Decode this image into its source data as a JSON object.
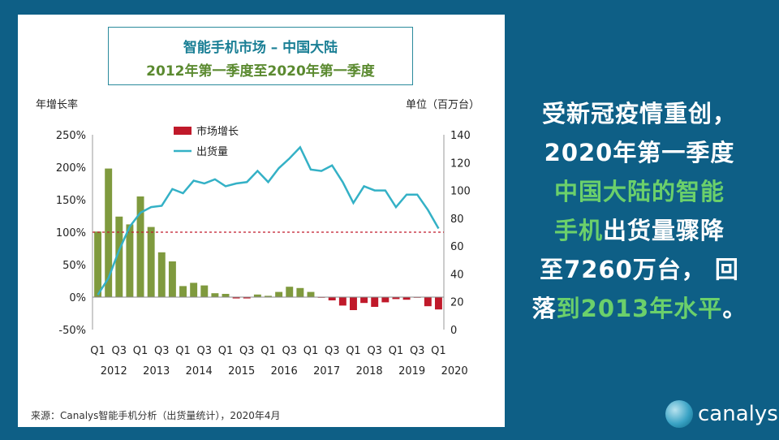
{
  "title_line1": "智能手机市场 – 中国大陆",
  "title_line2": "2012年第一季度至2020年第一季度",
  "left_axis_label": "年增长率",
  "right_axis_label": "单位（百万台）",
  "legend": {
    "bar": "市场增长",
    "line": "出货量"
  },
  "source": "来源：Canalys智能手机分析（出货量统计），2020年4月",
  "headline": {
    "l1": "受新冠疫情重创，",
    "l2": "2020年第一季度",
    "l3": "中国大陆的智能",
    "l4a": "手机",
    "l4b": "出货量骤降",
    "l5": "至7260万台，  回",
    "l6a": "落",
    "l6b": "到2013年水平",
    "l6c": "。"
  },
  "logo_text": "canalys",
  "colors": {
    "bar_positive": "#7f9a3e",
    "bar_negative": "#c0192a",
    "line": "#34b1c6",
    "reference": "#c0192a",
    "background": "#0e5f86"
  },
  "chart_data": {
    "type": "bar+line",
    "quarters": [
      "2012Q1",
      "2012Q2",
      "2012Q3",
      "2012Q4",
      "2013Q1",
      "2013Q2",
      "2013Q3",
      "2013Q4",
      "2014Q1",
      "2014Q2",
      "2014Q3",
      "2014Q4",
      "2015Q1",
      "2015Q2",
      "2015Q3",
      "2015Q4",
      "2016Q1",
      "2016Q2",
      "2016Q3",
      "2016Q4",
      "2017Q1",
      "2017Q2",
      "2017Q3",
      "2017Q4",
      "2018Q1",
      "2018Q2",
      "2018Q3",
      "2018Q4",
      "2019Q1",
      "2019Q2",
      "2019Q3",
      "2019Q4",
      "2020Q1"
    ],
    "x_tick_quarters": [
      "Q1",
      "Q3",
      "Q1",
      "Q3",
      "Q1",
      "Q3",
      "Q1",
      "Q3",
      "Q1",
      "Q3",
      "Q1",
      "Q3",
      "Q1",
      "Q3",
      "Q1",
      "Q3",
      "Q1"
    ],
    "x_tick_years": [
      "2012",
      "2013",
      "2014",
      "2015",
      "2016",
      "2017",
      "2018",
      "2019",
      "2020"
    ],
    "growth_pct": [
      101,
      198,
      124,
      112,
      155,
      108,
      69,
      55,
      17,
      22,
      18,
      6,
      5,
      -2,
      -2,
      4,
      2,
      8,
      16,
      14,
      8,
      -1,
      -5,
      -13,
      -20,
      -9,
      -15,
      -8,
      -3,
      -4,
      -1,
      -14,
      -19
    ],
    "shipments_m": [
      25,
      37,
      57,
      74,
      84,
      88,
      89,
      101,
      98,
      107,
      105,
      108,
      103,
      105,
      106,
      114,
      106,
      116,
      123,
      131,
      115,
      114,
      118,
      106,
      91,
      103,
      100,
      100,
      88,
      97,
      97,
      86,
      72.6
    ],
    "reference_line_pct": 100,
    "y_left": {
      "min": -50,
      "max": 250,
      "ticks": [
        "-50%",
        "0%",
        "50%",
        "100%",
        "150%",
        "200%",
        "250%"
      ]
    },
    "y_right": {
      "min": 0,
      "max": 140,
      "ticks": [
        "0",
        "20",
        "40",
        "60",
        "80",
        "100",
        "120",
        "140"
      ]
    }
  }
}
